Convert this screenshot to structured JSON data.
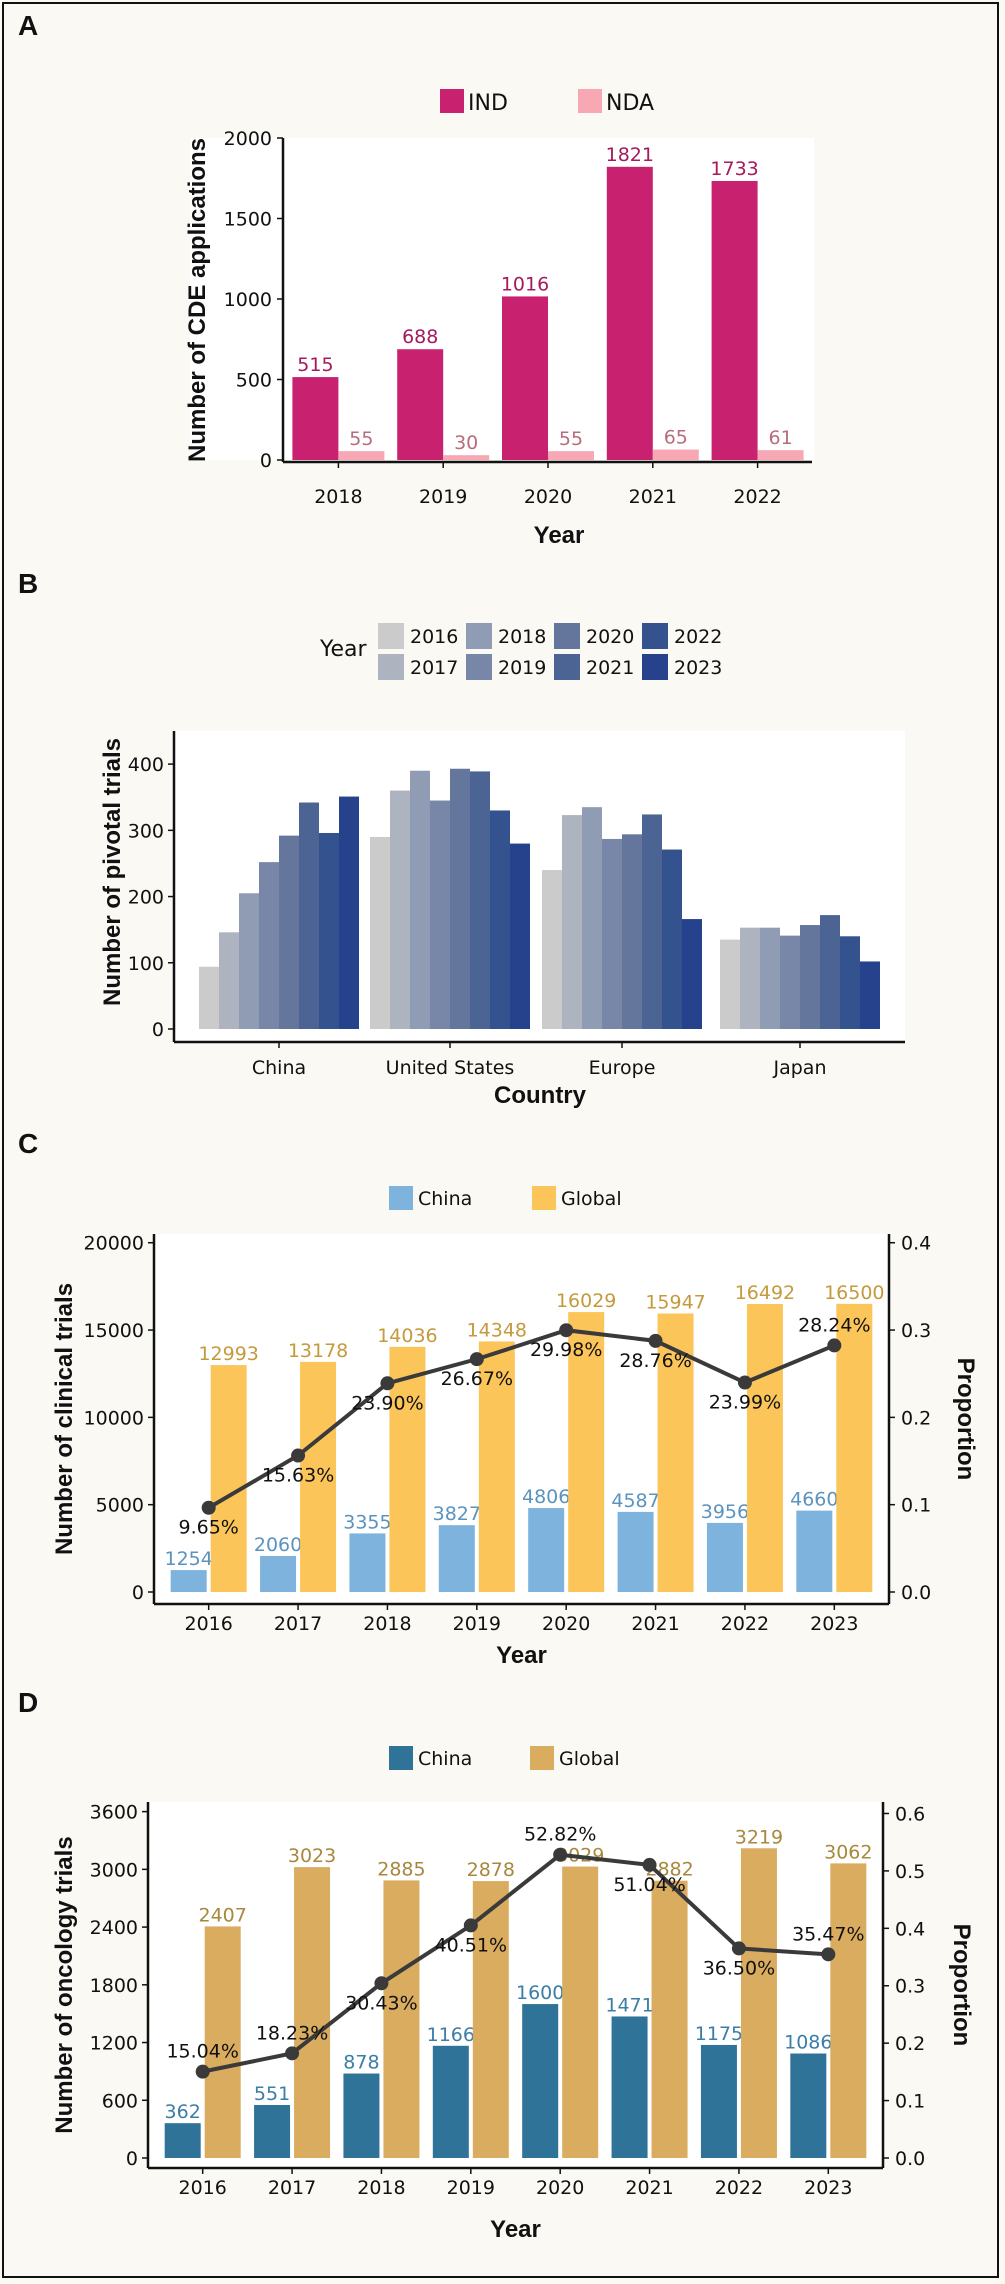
{
  "chart_data": [
    {
      "panel": "A",
      "type": "bar",
      "xlabel": "Year",
      "ylabel": "Number of CDE applications",
      "ylim": [
        0,
        2000
      ],
      "yticks": [
        0,
        500,
        1000,
        1500,
        2000
      ],
      "legend_position": "top",
      "grid": false,
      "categories": [
        "2018",
        "2019",
        "2020",
        "2021",
        "2022"
      ],
      "series": [
        {
          "name": "IND",
          "color": "#c8216f",
          "label_color": "#a51a5c",
          "values": [
            515,
            688,
            1016,
            1821,
            1733
          ]
        },
        {
          "name": "NDA",
          "color": "#f7a8b4",
          "label_color": "#b86c7c",
          "values": [
            55,
            30,
            55,
            65,
            61
          ]
        }
      ]
    },
    {
      "panel": "B",
      "type": "bar",
      "xlabel": "Country",
      "ylabel": "Number of pivotal trials",
      "legend_title": "Year",
      "ylim": [
        0,
        450
      ],
      "yticks": [
        0,
        100,
        200,
        300,
        400
      ],
      "legend_position": "top",
      "grid": false,
      "categories": [
        "China",
        "United States",
        "Europe",
        "Japan"
      ],
      "series": [
        {
          "name": "2016",
          "color": "#cbcbcb",
          "values": [
            94,
            290,
            240,
            135
          ]
        },
        {
          "name": "2017",
          "color": "#adb3bf",
          "values": [
            146,
            360,
            323,
            153
          ]
        },
        {
          "name": "2018",
          "color": "#8f9cb4",
          "values": [
            205,
            390,
            335,
            153
          ]
        },
        {
          "name": "2019",
          "color": "#7887a8",
          "values": [
            252,
            345,
            287,
            141
          ]
        },
        {
          "name": "2020",
          "color": "#65769c",
          "values": [
            292,
            393,
            294,
            157
          ]
        },
        {
          "name": "2021",
          "color": "#4c6493",
          "values": [
            342,
            389,
            324,
            172
          ]
        },
        {
          "name": "2022",
          "color": "#34528e",
          "values": [
            296,
            330,
            271,
            140
          ]
        },
        {
          "name": "2023",
          "color": "#26428c",
          "values": [
            351,
            280,
            166,
            102
          ]
        }
      ]
    },
    {
      "panel": "C",
      "type": "bar",
      "xlabel": "Year",
      "ylabel": "Number of clinical trials",
      "y2label": "Proportion",
      "ylim": [
        0,
        20500
      ],
      "yticks": [
        0,
        5000,
        10000,
        15000,
        20000
      ],
      "y2lim": [
        0,
        0.41
      ],
      "y2ticks": [
        "0.0",
        "0.1",
        "0.2",
        "0.3",
        "0.4"
      ],
      "legend_position": "top",
      "grid": false,
      "categories": [
        "2016",
        "2017",
        "2018",
        "2019",
        "2020",
        "2021",
        "2022",
        "2023"
      ],
      "series": [
        {
          "name": "China",
          "color": "#7db3dc",
          "label_color": "#5b93bf",
          "values": [
            1254,
            2060,
            3355,
            3827,
            4806,
            4587,
            3956,
            4660
          ]
        },
        {
          "name": "Global",
          "color": "#fbc55a",
          "label_color": "#c59a3d",
          "values": [
            12993,
            13178,
            14036,
            14348,
            16029,
            15947,
            16492,
            16500
          ]
        }
      ],
      "line": {
        "values": [
          0.0965,
          0.1563,
          0.239,
          0.2667,
          0.2998,
          0.2876,
          0.2399,
          0.2824
        ],
        "labels": [
          "9.65%",
          "15.63%",
          "23.90%",
          "26.67%",
          "29.98%",
          "28.76%",
          "23.99%",
          "28.24%"
        ],
        "color": "#3a3a3a"
      }
    },
    {
      "panel": "D",
      "type": "bar",
      "xlabel": "Year",
      "ylabel": "Number of oncology trials",
      "y2label": "Proportion",
      "ylim": [
        0,
        3700
      ],
      "yticks": [
        0,
        600,
        1200,
        1800,
        2400,
        3000,
        3600
      ],
      "y2lim": [
        0,
        0.62
      ],
      "y2ticks": [
        "0.0",
        "0.1",
        "0.2",
        "0.3",
        "0.4",
        "0.5",
        "0.6"
      ],
      "legend_position": "top",
      "grid": false,
      "categories": [
        "2016",
        "2017",
        "2018",
        "2019",
        "2020",
        "2021",
        "2022",
        "2023"
      ],
      "series": [
        {
          "name": "China",
          "color": "#2f7399",
          "label_color": "#3b7ea6",
          "values": [
            362,
            551,
            878,
            1166,
            1600,
            1471,
            1175,
            1086
          ]
        },
        {
          "name": "Global",
          "color": "#d9ac60",
          "label_color": "#a8883d",
          "values": [
            2407,
            3023,
            2885,
            2878,
            3029,
            2882,
            3219,
            3062
          ]
        }
      ],
      "line": {
        "values": [
          0.1504,
          0.1823,
          0.3043,
          0.4051,
          0.5282,
          0.5104,
          0.365,
          0.3547
        ],
        "labels": [
          "15.04%",
          "18.23%",
          "30.43%",
          "40.51%",
          "52.82%",
          "51.04%",
          "36.50%",
          "35.47%"
        ],
        "color": "#3a3a3a"
      }
    }
  ]
}
